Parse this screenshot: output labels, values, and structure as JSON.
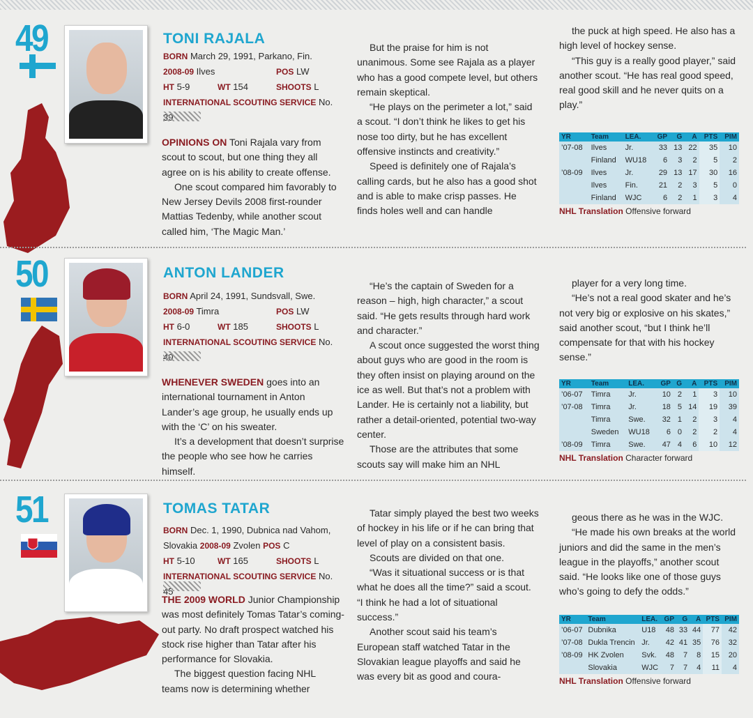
{
  "prospects": [
    {
      "rank": "49",
      "name": "TONI RAJALA",
      "flag": "finland",
      "color": "#8a1c22",
      "bio": {
        "born_label": "BORN",
        "born": "March 29, 1991, Parkano, Fin.",
        "season_label": "2008-09",
        "team": "Ilves",
        "pos_label": "POS",
        "pos": "LW",
        "ht_label": "HT",
        "ht": "5-9",
        "wt_label": "WT",
        "wt": "154",
        "shoots_label": "SHOOTS",
        "shoots": "L",
        "iss_label": "INTERNATIONAL SCOUTING SERVICE",
        "iss": "No. 39"
      },
      "lead": "OPINIONS ON",
      "paragraphs": [
        " Toni Rajala vary from scout to scout, but one thing they all agree on is his ability to create offense.",
        "One scout compared him favorably to New Jersey Devils 2008 first-rounder Mattias Tedenby, while another scout called him, ‘The Magic Man.’",
        "But the praise for him is not unanimous. Some see Rajala as a player who has a good compete level, but others remain skeptical.",
        "“He plays on the perimeter a lot,” said a scout. “I don’t think he likes to get his nose too dirty, but he has excellent offensive instincts and creativity.”",
        "Speed is definitely one of Rajala’s calling cards, but he also has a good shot and is able to make crisp passes. He finds holes well and can handle",
        "the puck at high speed. He also has a high level of hockey sense.",
        "“This guy is a really good player,” said another scout. “He has real good speed, real good skill and he never quits on a play.”"
      ],
      "stats": [
        [
          "’07-08",
          "Ilves",
          "Jr.",
          "33",
          "13",
          "22",
          "35",
          "10"
        ],
        [
          "",
          "Finland",
          "WU18",
          "6",
          "3",
          "2",
          "5",
          "2"
        ],
        [
          "’08-09",
          "Ilves",
          "Jr.",
          "29",
          "13",
          "17",
          "30",
          "16"
        ],
        [
          "",
          "Ilves",
          "Fin.",
          "21",
          "2",
          "3",
          "5",
          "0"
        ],
        [
          "",
          "Finland",
          "WJC",
          "6",
          "2",
          "1",
          "3",
          "4"
        ]
      ],
      "translation_label": "NHL Translation",
      "translation": "Offensive forward"
    },
    {
      "rank": "50",
      "name": "ANTON LANDER",
      "flag": "sweden",
      "bio": {
        "born_label": "BORN",
        "born": "April 24, 1991, Sundsvall, Swe.",
        "season_label": "2008-09",
        "team": "Timra",
        "pos_label": "POS",
        "pos": "LW",
        "ht_label": "HT",
        "ht": "6-0",
        "wt_label": "WT",
        "wt": "185",
        "shoots_label": "SHOOTS",
        "shoots": "L",
        "iss_label": "INTERNATIONAL SCOUTING SERVICE",
        "iss": "No. 40"
      },
      "lead": "WHENEVER SWEDEN",
      "paragraphs": [
        " goes into an international tournament in Anton Lander’s age group, he usually ends up with the ‘C’ on his sweater.",
        "It’s a development that doesn’t surprise the people who see how he carries himself.",
        "“He’s the captain of Sweden for a reason – high, high character,” a scout said. “He gets results through hard work and character.”",
        "A scout once suggested the worst thing about guys who are good in the room is they often insist on playing around on the ice as well. But that’s not a problem with Lander. He is certainly not a liability, but rather a detail-oriented, potential two-way center.",
        "Those are the attributes that some scouts say will make him an NHL",
        "player for a very long time.",
        "“He’s not a real good skater and he’s not very big or explosive on his skates,” said another scout, “but I think he’ll compensate for that with his hockey sense.”"
      ],
      "stats": [
        [
          "’06-07",
          "Timra",
          "Jr.",
          "10",
          "2",
          "1",
          "3",
          "10"
        ],
        [
          "’07-08",
          "Timra",
          "Jr.",
          "18",
          "5",
          "14",
          "19",
          "39"
        ],
        [
          "",
          "Timra",
          "Swe.",
          "32",
          "1",
          "2",
          "3",
          "4"
        ],
        [
          "",
          "Sweden",
          "WU18",
          "6",
          "0",
          "2",
          "2",
          "4"
        ],
        [
          "’08-09",
          "Timra",
          "Swe.",
          "47",
          "4",
          "6",
          "10",
          "12"
        ]
      ],
      "translation_label": "NHL Translation",
      "translation": "Character forward"
    },
    {
      "rank": "51",
      "name": "TOMAS TATAR",
      "flag": "slovakia",
      "bio": {
        "born_label": "BORN",
        "born": "Dec. 1, 1990, Dubnica nad Vahom, Slovakia",
        "season_label": "2008-09",
        "team": "Zvolen",
        "pos_label": "POS",
        "pos": "C",
        "ht_label": "HT",
        "ht": "5-10",
        "wt_label": "WT",
        "wt": "165",
        "shoots_label": "SHOOTS",
        "shoots": "L",
        "iss_label": "INTERNATIONAL SCOUTING SERVICE",
        "iss": "No. 45"
      },
      "lead": "THE 2009 WORLD",
      "paragraphs": [
        " Junior Championship was most definitely Tomas Tatar’s coming-out party. No draft prospect watched his stock rise higher than Tatar after his performance for Slovakia.",
        "The biggest question facing NHL teams now is determining whether",
        "Tatar simply played the best two weeks of hockey in his life or if he can bring that level of play on a consistent basis.",
        "Scouts are divided on that one.",
        "“Was it situational success or is that what he does all the time?” said a scout. “I think he had a lot of situational success.”",
        "Another scout said his team’s European staff watched Tatar in the Slovakian league playoffs and said he was every bit as good and coura-",
        "geous there as he was in the WJC.",
        "“He made his own breaks at the world juniors and did the same in the men’s league in the playoffs,” another scout said. “He looks like one of those guys who’s going to defy the odds.”"
      ],
      "stats": [
        [
          "’06-07",
          "Dubnika",
          "U18",
          "48",
          "33",
          "44",
          "77",
          "42"
        ],
        [
          "’07-08",
          "Dukla Trencin",
          "Jr.",
          "42",
          "41",
          "35",
          "76",
          "32"
        ],
        [
          "’08-09",
          "HK Zvolen",
          "Svk.",
          "48",
          "7",
          "8",
          "15",
          "20"
        ],
        [
          "",
          "Slovakia",
          "WJC",
          "7",
          "7",
          "4",
          "11",
          "4"
        ]
      ],
      "translation_label": "NHL Translation",
      "translation": "Offensive forward"
    }
  ],
  "stat_headers": [
    "YR",
    "Team",
    "LEA.",
    "GP",
    "G",
    "A",
    "PTS",
    "PIM"
  ],
  "colors": {
    "accent": "#1fa6cf",
    "lead": "#8a1c22",
    "map": "#9b1c1f",
    "table_bg": "#cde3ec"
  }
}
